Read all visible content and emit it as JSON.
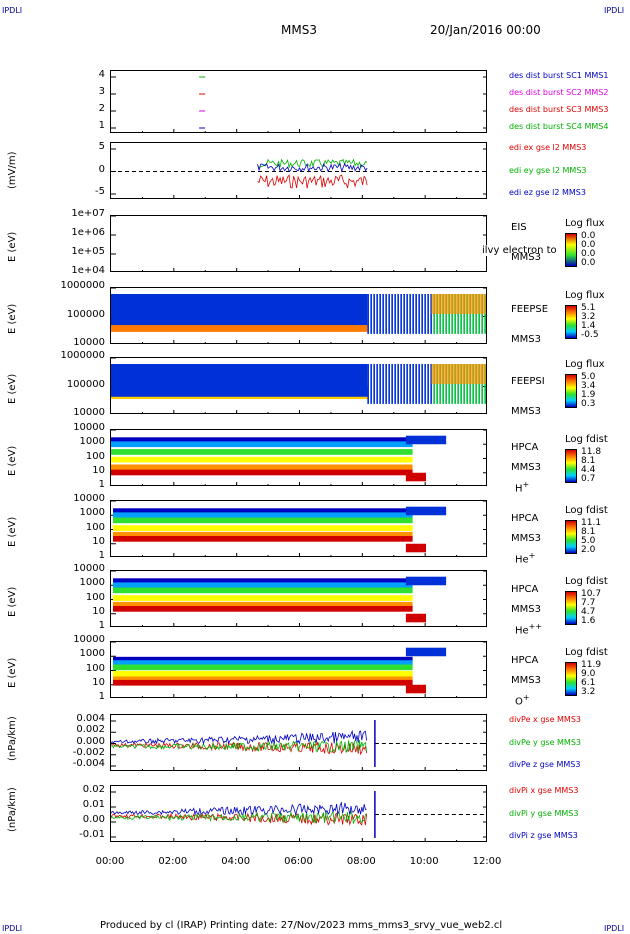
{
  "header": {
    "corner_left": "IPDLI",
    "corner_right": "IPDLI",
    "title": "MMS3",
    "date": "20/Jan/2016 00:00"
  },
  "footer": {
    "corner_left": "IPDLI",
    "corner_right": "IPDLI",
    "text": "Produced by cl (IRAP)   Printing date: 27/Nov/2023   mms_mms3_srvy_vue_web2.cl"
  },
  "chart_data": [
    {
      "type": "scatter",
      "ylabel": "",
      "yticks": [
        "4",
        "3",
        "2",
        "1"
      ],
      "ylim": [
        0.7,
        4.3
      ],
      "legend": [
        "des dist burst SC1 MMS1",
        "des dist burst SC2 MMS2",
        "des dist burst SC3 MMS3",
        "des dist burst SC4 MMS4"
      ],
      "colors": [
        "#0000c0",
        "#e000e0",
        "#e00000",
        "#00b000"
      ],
      "markers": [
        {
          "x": "02:54",
          "y": 1
        },
        {
          "x": "02:54",
          "y": 2
        },
        {
          "x": "02:54",
          "y": 3
        },
        {
          "x": "02:54",
          "y": 4
        }
      ]
    },
    {
      "type": "line",
      "ylabel": "(mV/m)",
      "yticks": [
        "5",
        "0",
        "-5"
      ],
      "ylim": [
        -8,
        7
      ],
      "legend": [
        "edi ex gse l2 MMS3",
        "edi ey gse l2 MMS3",
        "edi ez gse l2 MMS3"
      ],
      "colors": [
        "#e00000",
        "#00b000",
        "#0000c0"
      ],
      "x_range": [
        "04:40",
        "08:10"
      ],
      "series": [
        {
          "name": "edi ex gse l2 MMS3",
          "level": -2
        },
        {
          "name": "edi ey gse l2 MMS3",
          "level": 1.5
        },
        {
          "name": "edi ez gse l2 MMS3",
          "level": 0.8
        }
      ]
    },
    {
      "type": "heatmap",
      "ylabel": "E (eV)",
      "yticks": [
        "1e+07",
        "1e+06",
        "1e+05",
        "1e+04"
      ],
      "instrument": [
        "EIS",
        "MMS3"
      ],
      "overlay_text": "ilvy electron to",
      "colorbar": {
        "title": "Log flux",
        "values": [
          "0.0",
          "0.0",
          "0.0",
          "0.0"
        ]
      }
    },
    {
      "type": "heatmap",
      "ylabel": "E (eV)",
      "yticks": [
        "1000000",
        "100000",
        "10000"
      ],
      "instrument": [
        "FEEPSE",
        "MMS3"
      ],
      "colorbar": {
        "title": "Log flux",
        "values": [
          "5.1",
          "3.2",
          "1.4",
          "-0.5"
        ]
      }
    },
    {
      "type": "heatmap",
      "ylabel": "E (eV)",
      "yticks": [
        "1000000",
        "100000",
        "10000"
      ],
      "instrument": [
        "FEEPSI",
        "MMS3"
      ],
      "colorbar": {
        "title": "Log flux",
        "values": [
          "5.0",
          "3.4",
          "1.9",
          "0.3"
        ]
      }
    },
    {
      "type": "heatmap",
      "ylabel": "E (eV)",
      "yticks": [
        "10000",
        "1000",
        "100",
        "10",
        "1"
      ],
      "instrument": [
        "HPCA",
        "MMS3"
      ],
      "species": "H",
      "charge": "+",
      "colorbar": {
        "title": "Log fdist",
        "values": [
          "11.8",
          "8.1",
          "4.4",
          "0.7"
        ]
      }
    },
    {
      "type": "heatmap",
      "ylabel": "E (eV)",
      "yticks": [
        "10000",
        "1000",
        "100",
        "10",
        "1"
      ],
      "instrument": [
        "HPCA",
        "MMS3"
      ],
      "species": "He",
      "charge": "+",
      "colorbar": {
        "title": "Log fdist",
        "values": [
          "11.1",
          "8.1",
          "5.0",
          "2.0"
        ]
      }
    },
    {
      "type": "heatmap",
      "ylabel": "E (eV)",
      "yticks": [
        "10000",
        "1000",
        "100",
        "10",
        "1"
      ],
      "instrument": [
        "HPCA",
        "MMS3"
      ],
      "species": "He",
      "charge": "++",
      "colorbar": {
        "title": "Log fdist",
        "values": [
          "10.7",
          "7.7",
          "4.7",
          "1.6"
        ]
      }
    },
    {
      "type": "heatmap",
      "ylabel": "E (eV)",
      "yticks": [
        "10000",
        "1000",
        "100",
        "10",
        "1"
      ],
      "instrument": [
        "HPCA",
        "MMS3"
      ],
      "species": "O",
      "charge": "+",
      "colorbar": {
        "title": "Log fdist",
        "values": [
          "11.9",
          "9.0",
          "6.1",
          "3.2"
        ]
      }
    },
    {
      "type": "line",
      "ylabel": "(nPa/km)",
      "yticks": [
        "0.004",
        "0.002",
        "0.000",
        "-0.002",
        "-0.004"
      ],
      "ylim": [
        -0.005,
        0.005
      ],
      "legend": [
        "divPe x gse MMS3",
        "divPe y gse MMS3",
        "divPe z gse MMS3"
      ],
      "colors": [
        "#e00000",
        "#00b000",
        "#0000c0"
      ]
    },
    {
      "type": "line",
      "ylabel": "(nPa/km)",
      "yticks": [
        "0.02",
        "0.01",
        "0.00",
        "-0.01"
      ],
      "ylim": [
        -0.015,
        0.022
      ],
      "legend": [
        "divPi x gse MMS3",
        "divPi y gse MMS3",
        "divPi z gse MMS3"
      ],
      "colors": [
        "#e00000",
        "#00b000",
        "#0000c0"
      ]
    }
  ],
  "xaxis": {
    "ticks": [
      "00:00",
      "02:00",
      "04:00",
      "06:00",
      "08:00",
      "10:00",
      "12:00"
    ]
  }
}
